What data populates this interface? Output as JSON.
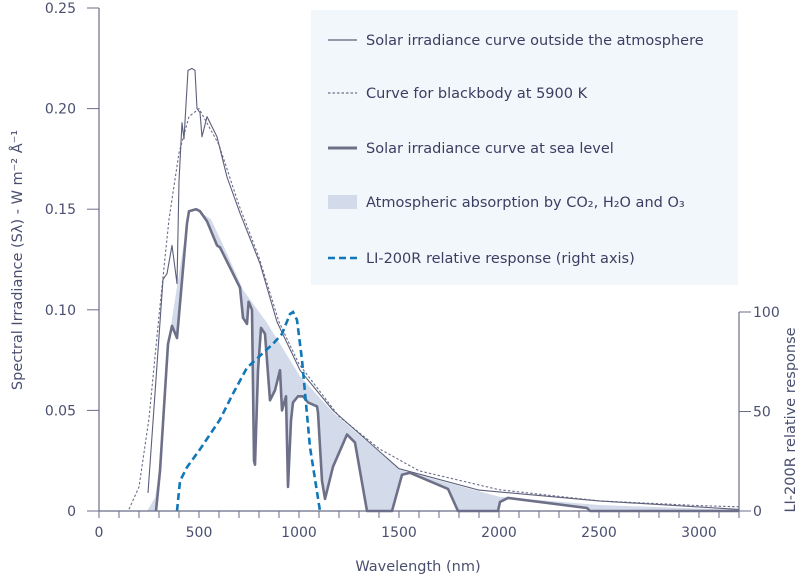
{
  "chart_data": {
    "type": "line",
    "xlabel": "Wavelength (nm)",
    "ylabel": "Spectral Irradiance (Sλ) - W m⁻² Å⁻¹",
    "y2label": "LI-200R relative response",
    "xlim": [
      0,
      3200
    ],
    "ylim": [
      0,
      0.25
    ],
    "y2lim": [
      0,
      100
    ],
    "xticks": [
      0,
      500,
      1000,
      1500,
      2000,
      2500,
      3000
    ],
    "xtick_labels": [
      "0",
      "500",
      "1000",
      "1500",
      "2000",
      "2500",
      "3000"
    ],
    "yticks": [
      0,
      0.05,
      0.1,
      0.15,
      0.2,
      0.25
    ],
    "ytick_labels": [
      "0",
      "0.05",
      "0.10",
      "0.15",
      "0.20",
      "0.25"
    ],
    "y2ticks": [
      0,
      50,
      100
    ],
    "y2tick_labels": [
      "0",
      "50",
      "100"
    ],
    "grid": false,
    "legend_placement": "top-right",
    "colors": {
      "axis": "#6b6e8a",
      "outside": "#5c5f7a",
      "blackbody": "#6b6e8a",
      "sea_level": "#6e7088",
      "absorption": "#d3dbea",
      "response": "#1177b8",
      "legend_bg": "#f1f7fb"
    },
    "series": [
      {
        "name": "Solar irradiance curve outside the atmosphere",
        "axis": "left",
        "style": "thin-solid",
        "points": [
          [
            245,
            0.009
          ],
          [
            320,
            0.115
          ],
          [
            340,
            0.118
          ],
          [
            365,
            0.132
          ],
          [
            390,
            0.113
          ],
          [
            400,
            0.164
          ],
          [
            415,
            0.193
          ],
          [
            425,
            0.185
          ],
          [
            445,
            0.219
          ],
          [
            465,
            0.22
          ],
          [
            480,
            0.219
          ],
          [
            490,
            0.2
          ],
          [
            505,
            0.198
          ],
          [
            515,
            0.186
          ],
          [
            540,
            0.196
          ],
          [
            590,
            0.186
          ],
          [
            640,
            0.166
          ],
          [
            705,
            0.148
          ],
          [
            805,
            0.123
          ],
          [
            890,
            0.094
          ],
          [
            1005,
            0.07
          ],
          [
            1170,
            0.05
          ],
          [
            1500,
            0.021
          ],
          [
            1900,
            0.0104
          ],
          [
            2500,
            0.005
          ],
          [
            3200,
            0.0008
          ]
        ]
      },
      {
        "name": "Curve for blackbody at 5900 K",
        "axis": "left",
        "style": "dotted",
        "points": [
          [
            150,
            0.0009
          ],
          [
            200,
            0.012
          ],
          [
            250,
            0.046
          ],
          [
            300,
            0.097
          ],
          [
            350,
            0.145
          ],
          [
            400,
            0.178
          ],
          [
            450,
            0.196
          ],
          [
            500,
            0.2
          ],
          [
            600,
            0.182
          ],
          [
            700,
            0.152
          ],
          [
            800,
            0.126
          ],
          [
            900,
            0.094
          ],
          [
            1000,
            0.073
          ],
          [
            1200,
            0.047
          ],
          [
            1400,
            0.031
          ],
          [
            1600,
            0.02
          ],
          [
            2000,
            0.0106
          ],
          [
            2500,
            0.005
          ],
          [
            3000,
            0.0027
          ],
          [
            3200,
            0.0021
          ]
        ]
      },
      {
        "name": "Solar irradiance curve at sea level",
        "axis": "left",
        "style": "thick-solid",
        "points": [
          [
            285,
            0
          ],
          [
            305,
            0.02
          ],
          [
            345,
            0.083
          ],
          [
            365,
            0.092
          ],
          [
            390,
            0.086
          ],
          [
            440,
            0.143
          ],
          [
            450,
            0.149
          ],
          [
            485,
            0.15
          ],
          [
            505,
            0.149
          ],
          [
            540,
            0.144
          ],
          [
            590,
            0.132
          ],
          [
            605,
            0.131
          ],
          [
            705,
            0.111
          ],
          [
            720,
            0.096
          ],
          [
            740,
            0.093
          ],
          [
            748,
            0.104
          ],
          [
            765,
            0.1
          ],
          [
            775,
            0.025
          ],
          [
            780,
            0.023
          ],
          [
            795,
            0.07
          ],
          [
            810,
            0.091
          ],
          [
            830,
            0.088
          ],
          [
            855,
            0.055
          ],
          [
            880,
            0.06
          ],
          [
            905,
            0.07
          ],
          [
            915,
            0.05
          ],
          [
            935,
            0.057
          ],
          [
            945,
            0.012
          ],
          [
            960,
            0.045
          ],
          [
            970,
            0.054
          ],
          [
            995,
            0.057
          ],
          [
            1020,
            0.057
          ],
          [
            1045,
            0.054
          ],
          [
            1090,
            0.052
          ],
          [
            1095,
            0.049
          ],
          [
            1115,
            0.015
          ],
          [
            1130,
            0.006
          ],
          [
            1170,
            0.022
          ],
          [
            1240,
            0.038
          ],
          [
            1280,
            0.034
          ],
          [
            1340,
            0
          ],
          [
            1465,
            0
          ],
          [
            1515,
            0.018
          ],
          [
            1555,
            0.019
          ],
          [
            1745,
            0.011
          ],
          [
            1795,
            0
          ],
          [
            1995,
            0
          ],
          [
            2005,
            0.0045
          ],
          [
            2045,
            0.0065
          ],
          [
            2440,
            0.0015
          ],
          [
            2455,
            0
          ],
          [
            3200,
            0
          ]
        ]
      },
      {
        "name": "Atmospheric absorption by CO₂, H₂O and O₃",
        "axis": "left",
        "style": "shaded-area",
        "points": [
          [
            240,
            0
          ],
          [
            280,
            0.0065
          ],
          [
            300,
            0.02
          ],
          [
            345,
            0.083
          ],
          [
            440,
            0.143
          ],
          [
            485,
            0.15
          ],
          [
            560,
            0.145
          ],
          [
            640,
            0.128
          ],
          [
            720,
            0.11
          ],
          [
            840,
            0.0935
          ],
          [
            1005,
            0.067
          ],
          [
            1170,
            0.049
          ],
          [
            1505,
            0.0204
          ],
          [
            2005,
            0.007
          ],
          [
            2500,
            0.003
          ],
          [
            3200,
            0.0005
          ]
        ]
      },
      {
        "name": "LI-200R relative response (right axis)",
        "axis": "right",
        "style": "dashed",
        "points": [
          [
            390,
            0
          ],
          [
            405,
            15
          ],
          [
            440,
            22
          ],
          [
            505,
            31
          ],
          [
            605,
            46
          ],
          [
            670,
            59
          ],
          [
            740,
            72
          ],
          [
            805,
            78
          ],
          [
            870,
            84
          ],
          [
            915,
            89
          ],
          [
            955,
            99
          ],
          [
            970,
            100
          ],
          [
            990,
            96
          ],
          [
            1015,
            76
          ],
          [
            1055,
            32
          ],
          [
            1105,
            0
          ]
        ]
      }
    ]
  },
  "legend": {
    "items": [
      {
        "label": "Solar irradiance curve outside the atmosphere",
        "marker": "thin-solid"
      },
      {
        "label": "Curve for blackbody at 5900 K",
        "marker": "dotted"
      },
      {
        "label": "Solar irradiance curve at sea level",
        "marker": "thick-solid"
      },
      {
        "label": "Atmospheric absorption by CO₂, H₂O and O₃",
        "marker": "shaded-box"
      },
      {
        "label": "LI-200R relative response (right axis)",
        "marker": "dashed"
      }
    ]
  }
}
